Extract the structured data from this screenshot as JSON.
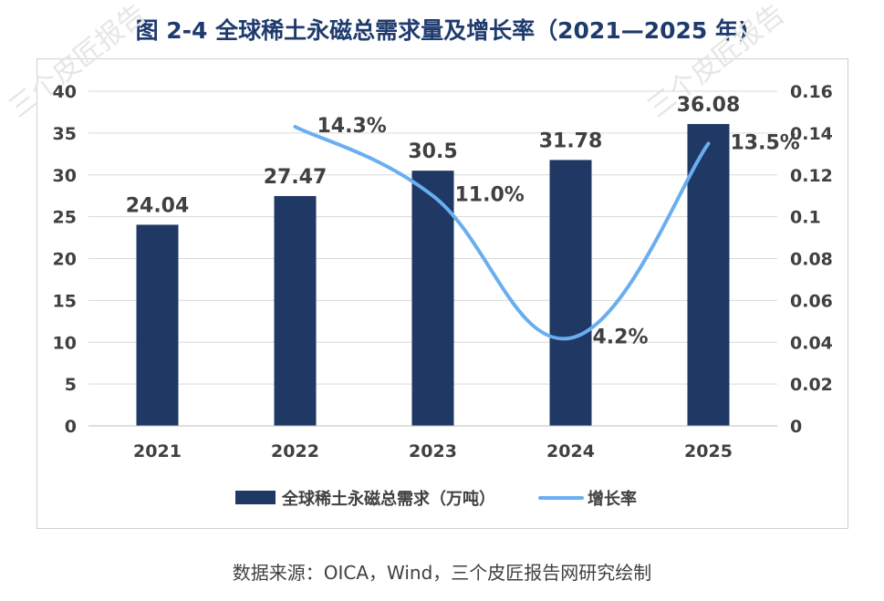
{
  "title": "图 2-4 全球稀土永磁总需求量及增长率（2021—2025 年)",
  "source": "数据来源：OICA，Wind，三个皮匠报告网研究绘制",
  "watermark": "三个皮匠报告",
  "colors": {
    "bar": "#1f3864",
    "line": "#6aaef0",
    "title": "#1f3b6e"
  },
  "chart_data": {
    "type": "bar",
    "categories": [
      "2021",
      "2022",
      "2023",
      "2024",
      "2025"
    ],
    "series": [
      {
        "name": "全球稀土永磁总需求（万吨）",
        "type": "bar",
        "axis": "left",
        "values": [
          24.04,
          27.47,
          30.5,
          31.78,
          36.08
        ],
        "labels": [
          "24.04",
          "27.47",
          "30.5",
          "31.78",
          "36.08"
        ]
      },
      {
        "name": "增长率",
        "type": "line",
        "axis": "right",
        "smooth": true,
        "values": [
          null,
          0.143,
          0.11,
          0.042,
          0.135
        ],
        "labels": [
          "",
          "14.3%",
          "11.0%",
          "4.2%",
          "13.5%"
        ]
      }
    ],
    "y_left": {
      "min": 0,
      "max": 40,
      "ticks": [
        "0",
        "5",
        "10",
        "15",
        "20",
        "25",
        "30",
        "35",
        "40"
      ]
    },
    "y_right": {
      "min": 0,
      "max": 0.16,
      "ticks": [
        "0",
        "0.02",
        "0.04",
        "0.06",
        "0.08",
        "0.1",
        "0.12",
        "0.14",
        "0.16"
      ]
    },
    "grid": true,
    "legend": "bottom"
  }
}
